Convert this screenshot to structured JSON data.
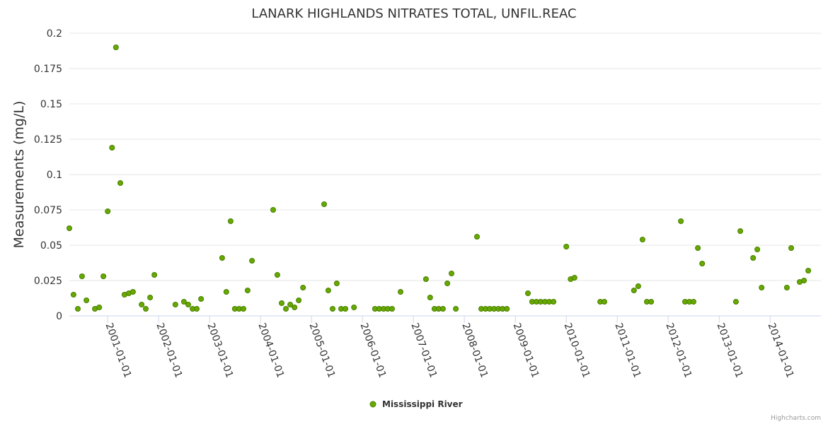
{
  "chart_data": {
    "type": "scatter",
    "title": "LANARK HIGHLANDS NITRATES TOTAL, UNFIL.REAC",
    "xlabel": "",
    "ylabel": "Measurements (mg/L)",
    "xlim": [
      "2000-04-01",
      "2014-12-31"
    ],
    "ylim": [
      0,
      0.2
    ],
    "y_ticks": [
      "0",
      "0.025",
      "0.05",
      "0.075",
      "0.1",
      "0.125",
      "0.15",
      "0.175",
      "0.2"
    ],
    "x_ticks": [
      "2001-01-01",
      "2002-01-01",
      "2003-01-01",
      "2004-01-01",
      "2005-01-01",
      "2006-01-01",
      "2007-01-01",
      "2008-01-01",
      "2009-01-01",
      "2010-01-01",
      "2011-01-01",
      "2012-01-01",
      "2013-01-01",
      "2014-01-01"
    ],
    "grid": true,
    "legend_position": "bottom-center",
    "series": [
      {
        "name": "Mississippi River",
        "color": "#66aa00",
        "border_color": "#4a7d00",
        "points": [
          [
            "2000-04-01",
            0.062
          ],
          [
            "2000-05-01",
            0.015
          ],
          [
            "2000-06-01",
            0.005
          ],
          [
            "2000-07-01",
            0.028
          ],
          [
            "2000-08-01",
            0.011
          ],
          [
            "2000-10-01",
            0.005
          ],
          [
            "2000-11-01",
            0.006
          ],
          [
            "2000-12-01",
            0.028
          ],
          [
            "2001-01-01",
            0.074
          ],
          [
            "2001-02-01",
            0.119
          ],
          [
            "2001-03-01",
            0.19
          ],
          [
            "2001-04-01",
            0.094
          ],
          [
            "2001-05-01",
            0.015
          ],
          [
            "2001-06-01",
            0.016
          ],
          [
            "2001-07-01",
            0.017
          ],
          [
            "2001-09-01",
            0.008
          ],
          [
            "2001-10-01",
            0.005
          ],
          [
            "2001-11-01",
            0.013
          ],
          [
            "2001-12-01",
            0.029
          ],
          [
            "2002-05-01",
            0.008
          ],
          [
            "2002-07-01",
            0.01
          ],
          [
            "2002-08-01",
            0.008
          ],
          [
            "2002-09-01",
            0.005
          ],
          [
            "2002-10-01",
            0.005
          ],
          [
            "2002-11-01",
            0.012
          ],
          [
            "2003-04-01",
            0.041
          ],
          [
            "2003-05-01",
            0.017
          ],
          [
            "2003-06-01",
            0.067
          ],
          [
            "2003-07-01",
            0.005
          ],
          [
            "2003-08-01",
            0.005
          ],
          [
            "2003-09-01",
            0.005
          ],
          [
            "2003-10-01",
            0.018
          ],
          [
            "2003-11-01",
            0.039
          ],
          [
            "2004-04-01",
            0.075
          ],
          [
            "2004-05-01",
            0.029
          ],
          [
            "2004-06-01",
            0.009
          ],
          [
            "2004-07-01",
            0.005
          ],
          [
            "2004-08-01",
            0.008
          ],
          [
            "2004-09-01",
            0.006
          ],
          [
            "2004-10-01",
            0.011
          ],
          [
            "2004-11-01",
            0.02
          ],
          [
            "2005-04-01",
            0.079
          ],
          [
            "2005-05-01",
            0.018
          ],
          [
            "2005-06-01",
            0.005
          ],
          [
            "2005-07-01",
            0.023
          ],
          [
            "2005-08-01",
            0.005
          ],
          [
            "2005-09-01",
            0.005
          ],
          [
            "2005-11-01",
            0.006
          ],
          [
            "2006-04-01",
            0.005
          ],
          [
            "2006-05-01",
            0.005
          ],
          [
            "2006-06-01",
            0.005
          ],
          [
            "2006-07-01",
            0.005
          ],
          [
            "2006-08-01",
            0.005
          ],
          [
            "2006-10-01",
            0.017
          ],
          [
            "2007-04-01",
            0.026
          ],
          [
            "2007-05-01",
            0.013
          ],
          [
            "2007-06-01",
            0.005
          ],
          [
            "2007-07-01",
            0.005
          ],
          [
            "2007-08-01",
            0.005
          ],
          [
            "2007-09-01",
            0.023
          ],
          [
            "2007-10-01",
            0.03
          ],
          [
            "2007-11-01",
            0.005
          ],
          [
            "2008-04-01",
            0.056
          ],
          [
            "2008-05-01",
            0.005
          ],
          [
            "2008-06-01",
            0.005
          ],
          [
            "2008-07-01",
            0.005
          ],
          [
            "2008-08-01",
            0.005
          ],
          [
            "2008-09-01",
            0.005
          ],
          [
            "2008-10-01",
            0.005
          ],
          [
            "2008-11-01",
            0.005
          ],
          [
            "2009-04-01",
            0.016
          ],
          [
            "2009-05-01",
            0.01
          ],
          [
            "2009-06-01",
            0.01
          ],
          [
            "2009-07-01",
            0.01
          ],
          [
            "2009-08-01",
            0.01
          ],
          [
            "2009-09-01",
            0.01
          ],
          [
            "2009-10-01",
            0.01
          ],
          [
            "2010-01-01",
            0.049
          ],
          [
            "2010-02-01",
            0.026
          ],
          [
            "2010-03-01",
            0.027
          ],
          [
            "2010-09-01",
            0.01
          ],
          [
            "2010-10-01",
            0.01
          ],
          [
            "2011-05-01",
            0.018
          ],
          [
            "2011-06-01",
            0.021
          ],
          [
            "2011-07-01",
            0.054
          ],
          [
            "2011-08-01",
            0.01
          ],
          [
            "2011-09-01",
            0.01
          ],
          [
            "2012-04-01",
            0.067
          ],
          [
            "2012-05-01",
            0.01
          ],
          [
            "2012-06-01",
            0.01
          ],
          [
            "2012-07-01",
            0.01
          ],
          [
            "2012-08-01",
            0.048
          ],
          [
            "2012-09-01",
            0.037
          ],
          [
            "2013-05-01",
            0.01
          ],
          [
            "2013-06-01",
            0.06
          ],
          [
            "2013-09-01",
            0.041
          ],
          [
            "2013-10-01",
            0.047
          ],
          [
            "2013-11-01",
            0.02
          ],
          [
            "2014-05-01",
            0.02
          ],
          [
            "2014-06-01",
            0.048
          ],
          [
            "2014-08-01",
            0.024
          ],
          [
            "2014-09-01",
            0.025
          ],
          [
            "2014-10-01",
            0.032
          ]
        ]
      }
    ]
  },
  "credits": "Highcharts.com"
}
